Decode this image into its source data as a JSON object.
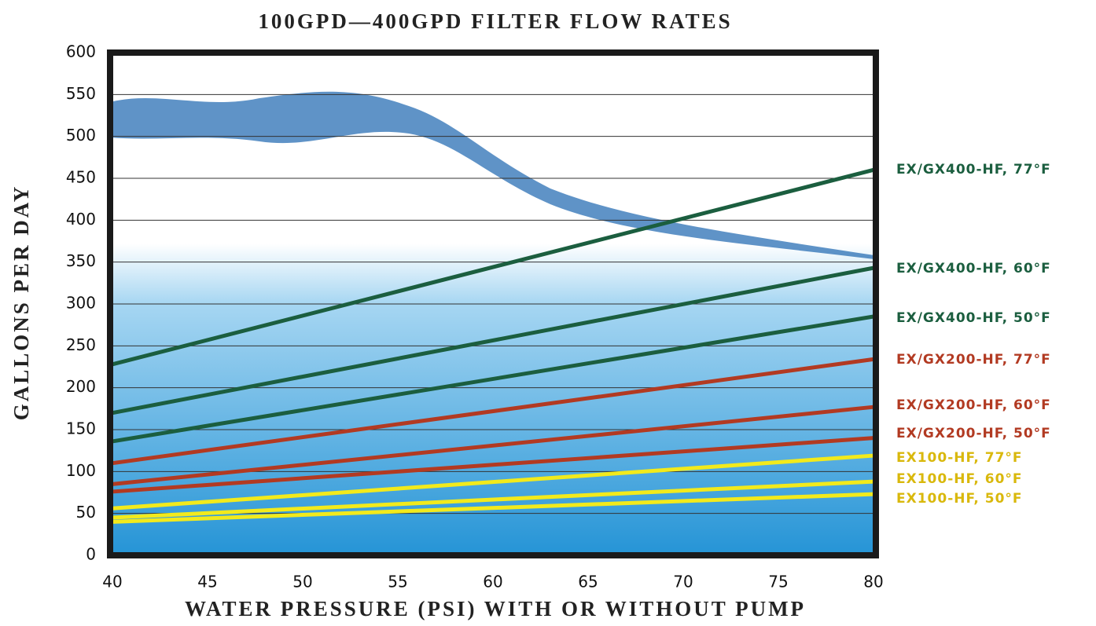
{
  "chart_data": {
    "type": "line",
    "title": "100GPD—400GPD FILTER FLOW RATES",
    "x_label": "WATER PRESSURE (PSI) WITH OR WITHOUT PUMP",
    "y_label": "GALLONS PER DAY",
    "x": [
      40,
      80
    ],
    "series": [
      {
        "name": "EX/GX400-HF, 77°F",
        "color": "#1b5e3f",
        "label_color": "#1b5e3f",
        "values": [
          228,
          460
        ]
      },
      {
        "name": "EX/GX400-HF, 60°F",
        "color": "#1b5e3f",
        "label_color": "#1b5e3f",
        "values": [
          170,
          343
        ]
      },
      {
        "name": "EX/GX400-HF, 50°F",
        "color": "#1b5e3f",
        "label_color": "#1b5e3f",
        "values": [
          136,
          285
        ]
      },
      {
        "name": "EX/GX200-HF, 77°F",
        "color": "#b23a22",
        "label_color": "#b23a22",
        "values": [
          110,
          234
        ]
      },
      {
        "name": "EX/GX200-HF, 60°F",
        "color": "#b23a22",
        "label_color": "#b23a22",
        "values": [
          85,
          177
        ]
      },
      {
        "name": "EX/GX200-HF, 50°F",
        "color": "#b23a22",
        "label_color": "#b23a22",
        "values": [
          76,
          140
        ]
      },
      {
        "name": "EX100-HF, 77°F",
        "color": "#f2ea1c",
        "label_color": "#d9b80c",
        "values": [
          56,
          119
        ]
      },
      {
        "name": "EX100-HF, 60°F",
        "color": "#f2ea1c",
        "label_color": "#d9b80c",
        "values": [
          45,
          88
        ]
      },
      {
        "name": "EX100-HF, 50°F",
        "color": "#f2ea1c",
        "label_color": "#d9b80c",
        "values": [
          40,
          73
        ]
      }
    ],
    "xlim": [
      40,
      80
    ],
    "xticks": [
      40,
      45,
      50,
      55,
      60,
      65,
      70,
      75,
      80
    ],
    "ylim": [
      0,
      600
    ],
    "yticks": [
      0,
      50,
      100,
      150,
      200,
      250,
      300,
      350,
      400,
      450,
      500,
      550,
      600
    ],
    "grid": true
  }
}
